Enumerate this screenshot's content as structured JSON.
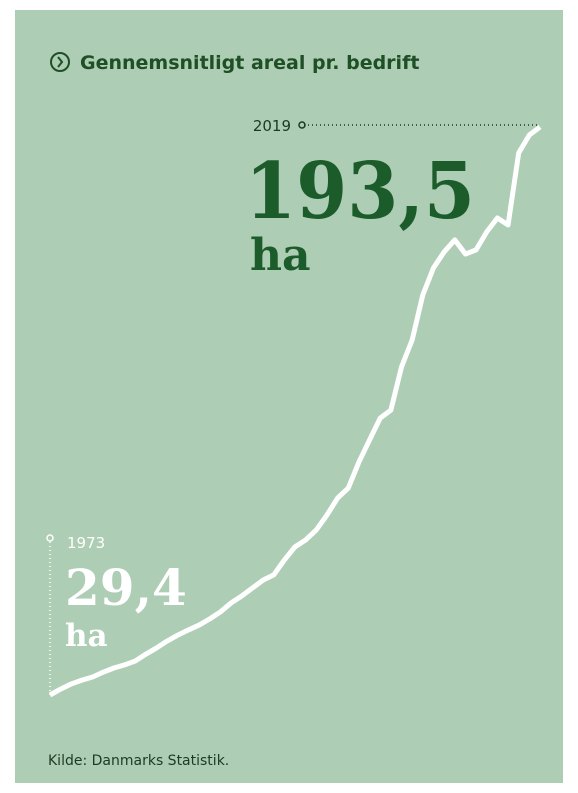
{
  "chart_data": {
    "type": "line",
    "title": "Gennemsnitligt areal pr. bedrift",
    "source": "Kilde: Danmarks Statistik.",
    "unit": "ha",
    "categories": [
      "1973",
      null,
      null,
      null,
      null,
      null,
      null,
      null,
      null,
      null,
      null,
      null,
      null,
      null,
      null,
      null,
      null,
      null,
      null,
      null,
      null,
      null,
      null,
      null,
      null,
      null,
      null,
      null,
      null,
      null,
      null,
      null,
      null,
      null,
      null,
      null,
      null,
      null,
      null,
      null,
      null,
      null,
      null,
      null,
      null,
      null,
      "2019"
    ],
    "values": [
      29.4,
      31.1,
      32.6,
      33.7,
      34.6,
      36.0,
      37.2,
      38.1,
      39.2,
      41.2,
      43.0,
      45.0,
      46.7,
      48.2,
      49.6,
      51.4,
      53.4,
      56.0,
      58.0,
      60.3,
      62.6,
      64.1,
      68.4,
      72.2,
      74.2,
      77.1,
      81.4,
      86.3,
      89.2,
      96.7,
      103.1,
      109.4,
      111.7,
      124.2,
      132.0,
      145.0,
      152.8,
      157.4,
      160.9,
      156.8,
      158.0,
      163.2,
      167.2,
      165.2,
      186.0,
      191.2,
      193.5
    ],
    "value_labels": [
      "29,4",
      null,
      null,
      null,
      null,
      null,
      null,
      null,
      null,
      null,
      null,
      null,
      null,
      null,
      null,
      null,
      null,
      null,
      null,
      null,
      null,
      null,
      null,
      null,
      null,
      null,
      null,
      null,
      null,
      null,
      null,
      null,
      null,
      null,
      null,
      null,
      null,
      null,
      null,
      null,
      null,
      null,
      null,
      null,
      null,
      null,
      "193,5"
    ],
    "ylim": [
      29.4,
      193.5
    ],
    "color": "#ffffff",
    "highlight_color": "#1c5c2b"
  }
}
